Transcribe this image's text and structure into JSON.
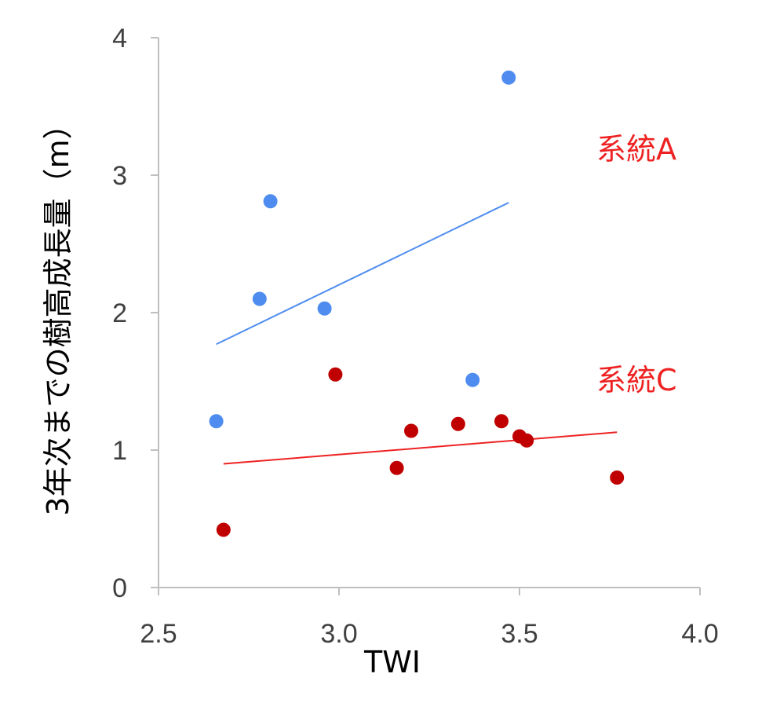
{
  "chart_data": {
    "type": "scatter",
    "title": "",
    "xlabel": "TWI",
    "ylabel": "3年次までの樹高成長量（m）",
    "xlim": [
      2.5,
      4.0
    ],
    "ylim": [
      0,
      4
    ],
    "xticks": [
      2.5,
      3.0,
      3.5,
      4.0
    ],
    "xtick_labels": [
      "2.5",
      "3.0",
      "3.5",
      "4.0"
    ],
    "yticks": [
      0,
      1,
      2,
      3,
      4
    ],
    "ytick_labels": [
      "0",
      "1",
      "2",
      "3",
      "4"
    ],
    "grid": false,
    "legend": "none",
    "series": [
      {
        "name": "系統A",
        "color": "#4e8cf0",
        "label_color": "#ee2222",
        "points": [
          {
            "x": 2.66,
            "y": 1.21
          },
          {
            "x": 2.78,
            "y": 2.1
          },
          {
            "x": 2.81,
            "y": 2.81
          },
          {
            "x": 2.96,
            "y": 2.03
          },
          {
            "x": 3.37,
            "y": 1.51
          },
          {
            "x": 3.47,
            "y": 3.71
          }
        ],
        "trendline": {
          "x": [
            2.66,
            3.47
          ],
          "y": [
            1.77,
            2.8
          ]
        }
      },
      {
        "name": "系統C",
        "color": "#c00000",
        "label_color": "#ee2222",
        "trend_color": "#ee2222",
        "points": [
          {
            "x": 2.68,
            "y": 0.42
          },
          {
            "x": 2.99,
            "y": 1.55
          },
          {
            "x": 3.16,
            "y": 0.87
          },
          {
            "x": 3.2,
            "y": 1.14
          },
          {
            "x": 3.33,
            "y": 1.19
          },
          {
            "x": 3.45,
            "y": 1.21
          },
          {
            "x": 3.5,
            "y": 1.1
          },
          {
            "x": 3.52,
            "y": 1.07
          },
          {
            "x": 3.77,
            "y": 0.8
          }
        ],
        "trendline": {
          "x": [
            2.68,
            3.77
          ],
          "y": [
            0.9,
            1.13
          ]
        }
      }
    ]
  }
}
